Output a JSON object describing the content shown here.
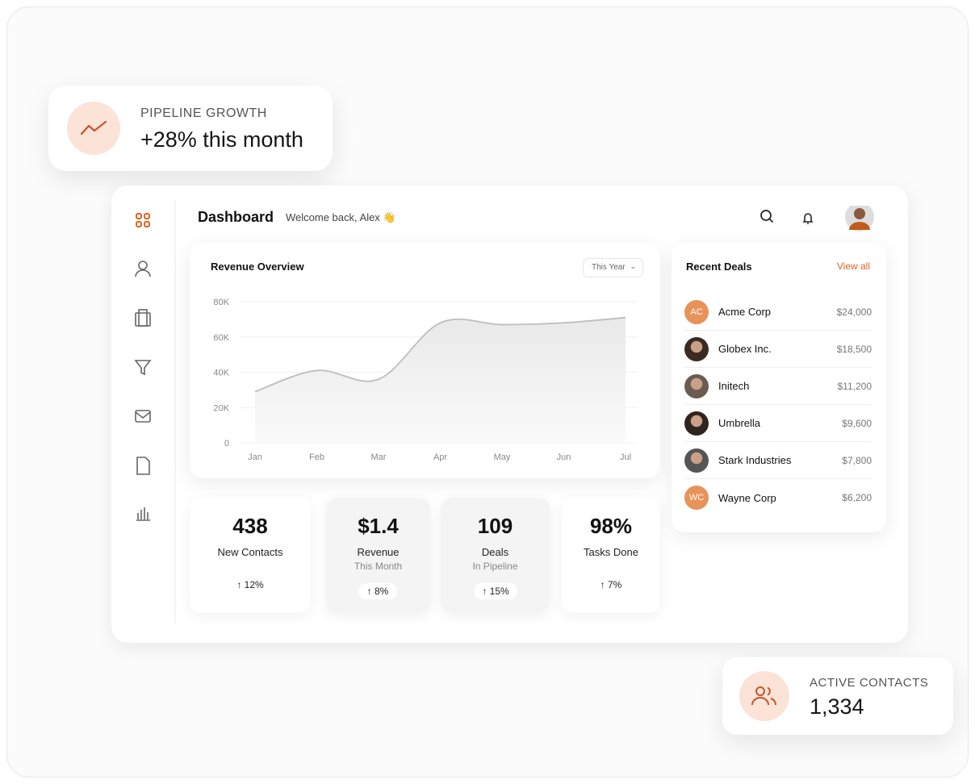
{
  "pipeline_card": {
    "label": "PIPELINE GROWTH",
    "value": "+28% this month"
  },
  "header": {
    "title": "Dashboard",
    "welcome": "Welcome back, Alex 👋"
  },
  "revenue_chart": {
    "type": "area",
    "title": "Revenue Overview",
    "filter": "This Year",
    "categories": [
      "Jan",
      "Feb",
      "Mar",
      "Apr",
      "May",
      "Jun",
      "Jul"
    ],
    "values": [
      29000,
      41000,
      36000,
      68000,
      67000,
      68000,
      71000
    ],
    "color": "#bdbdbd",
    "grid": true,
    "ylim": [
      0,
      80000
    ],
    "yticks": [
      {
        "value": 0,
        "label": "0"
      },
      {
        "value": 20000,
        "label": "20K"
      },
      {
        "value": 40000,
        "label": "40K"
      },
      {
        "value": 60000,
        "label": "60K"
      },
      {
        "value": 80000,
        "label": "80K"
      }
    ]
  },
  "stats": [
    {
      "value": "438",
      "label": "New Contacts",
      "change": "12%"
    },
    {
      "value": "$1.4",
      "label": "Revenue",
      "sublabel": "This Month",
      "change": "8%"
    },
    {
      "value": "109",
      "label": "Deals",
      "sublabel": "In Pipeline",
      "change": "15%"
    },
    {
      "value": "98%",
      "label": "Tasks Done",
      "change": "7%"
    }
  ],
  "recent_deals": {
    "title": "Recent Deals",
    "view_all": "View all",
    "deals": [
      {
        "initials": "AC",
        "name": "Acme Corp",
        "amount": "$24,000"
      },
      {
        "name": "Globex Inc.",
        "amount": "$18,500"
      },
      {
        "name": "Initech",
        "amount": "$11,200"
      },
      {
        "name": "Umbrella",
        "amount": "$9,600"
      },
      {
        "name": "Stark Industries",
        "amount": "$7,800"
      },
      {
        "initials": "WC",
        "name": "Wayne Corp",
        "amount": "$6,200"
      }
    ]
  },
  "active_contacts": {
    "label": "ACTIVE CONTACTS",
    "value": "1,334"
  }
}
